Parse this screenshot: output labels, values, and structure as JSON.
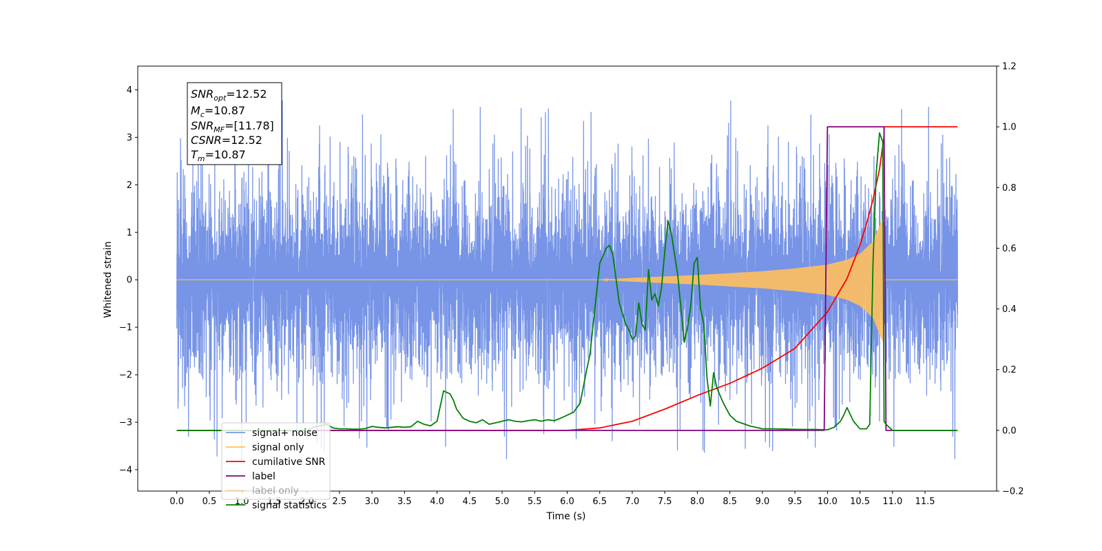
{
  "chart_data": {
    "type": "line",
    "xlabel": "Time (s)",
    "ylabel": "Whitened strain",
    "xlim": [
      -0.6,
      12.6
    ],
    "ylim": [
      -4.45,
      4.5
    ],
    "y2lim": [
      -0.2,
      1.2
    ],
    "x_ticks": [
      "0.0",
      "0.5",
      "1.0",
      "1.5",
      "2.0",
      "2.5",
      "3.0",
      "3.5",
      "4.0",
      "4.5",
      "5.0",
      "5.5",
      "6.0",
      "6.5",
      "7.0",
      "7.5",
      "8.0",
      "8.5",
      "9.0",
      "9.5",
      "10.0",
      "10.5",
      "11.0",
      "11.5"
    ],
    "y_ticks": [
      "−4",
      "−3",
      "−2",
      "−1",
      "0",
      "1",
      "2",
      "3",
      "4"
    ],
    "y2_ticks": [
      "−0.2",
      "0.0",
      "0.2",
      "0.4",
      "0.6",
      "0.8",
      "1.0",
      "1.2"
    ],
    "legend_position": "lower-left",
    "info_box": {
      "snr_opt": {
        "symbol": "SNR",
        "sub": "opt",
        "value": "=12.52"
      },
      "mc": {
        "symbol": "M",
        "sub": "c",
        "value": "=10.87"
      },
      "snr_mf": {
        "symbol": "SNR",
        "sub": "MF",
        "value": "=[11.78]"
      },
      "csnr": {
        "symbol": "CSNR",
        "value": "=12.52"
      },
      "tm": {
        "symbol": "T",
        "sub": "m",
        "value": "=10.87"
      }
    },
    "series": [
      {
        "name": "signal+ noise",
        "color": "#7794e6",
        "axis": "left",
        "description_points": {
          "t_start": 0.0,
          "t_end": 12.0,
          "typical_range": [
            -2.3,
            2.3
          ],
          "peak_max": 4.12,
          "peak_min": -3.95
        }
      },
      {
        "name": "signal only",
        "color": "#ffbf5e",
        "axis": "left",
        "envelope": {
          "t": [
            0.0,
            6.5,
            7.0,
            8.0,
            9.0,
            9.5,
            10.0,
            10.3,
            10.5,
            10.7,
            10.85,
            10.87,
            12.0
          ],
          "amp": [
            0.0,
            0.0,
            0.04,
            0.1,
            0.18,
            0.24,
            0.32,
            0.42,
            0.55,
            0.8,
            1.3,
            0.0,
            0.0
          ]
        }
      },
      {
        "name": "cumilative SNR",
        "color": "#ff0000",
        "axis": "right",
        "x": [
          0.0,
          6.0,
          6.5,
          7.0,
          7.5,
          8.0,
          8.5,
          9.0,
          9.5,
          10.0,
          10.3,
          10.5,
          10.6,
          10.7,
          10.8,
          10.87,
          10.87,
          12.0
        ],
        "y": [
          0.0,
          0.0,
          0.008,
          0.03,
          0.07,
          0.115,
          0.155,
          0.205,
          0.27,
          0.39,
          0.5,
          0.61,
          0.68,
          0.76,
          0.86,
          0.97,
          1.0,
          1.0
        ]
      },
      {
        "name": "label",
        "color": "#800080",
        "axis": "right",
        "x": [
          0.0,
          9.95,
          10.0,
          10.87,
          10.9,
          12.0
        ],
        "y": [
          0.0,
          0.0,
          1.0,
          1.0,
          0.0,
          0.0
        ]
      },
      {
        "name": "label only",
        "color": "#ffbf5e",
        "axis": "right"
      },
      {
        "name": "signal statistics",
        "color": "#008000",
        "axis": "right",
        "x": [
          0.0,
          2.0,
          2.1,
          2.2,
          2.3,
          2.4,
          2.5,
          2.6,
          2.7,
          2.8,
          2.9,
          3.0,
          3.1,
          3.2,
          3.3,
          3.4,
          3.5,
          3.6,
          3.7,
          3.8,
          3.9,
          4.0,
          4.1,
          4.2,
          4.25,
          4.3,
          4.4,
          4.5,
          4.6,
          4.7,
          4.8,
          4.9,
          5.0,
          5.1,
          5.2,
          5.3,
          5.4,
          5.5,
          5.6,
          5.7,
          5.8,
          5.9,
          6.0,
          6.1,
          6.2,
          6.3,
          6.35,
          6.4,
          6.5,
          6.6,
          6.65,
          6.7,
          6.8,
          6.9,
          6.95,
          7.0,
          7.05,
          7.1,
          7.15,
          7.2,
          7.25,
          7.3,
          7.35,
          7.4,
          7.45,
          7.5,
          7.55,
          7.6,
          7.7,
          7.8,
          7.85,
          7.9,
          7.95,
          8.0,
          8.05,
          8.1,
          8.15,
          8.2,
          8.25,
          8.3,
          8.4,
          8.5,
          8.6,
          8.8,
          9.0,
          9.2,
          9.4,
          9.6,
          9.8,
          10.0,
          10.1,
          10.2,
          10.25,
          10.3,
          10.4,
          10.5,
          10.6,
          10.65,
          10.7,
          10.75,
          10.8,
          10.85,
          10.87,
          10.9,
          11.0,
          12.0
        ],
        "y": [
          0.0,
          0.0,
          0.01,
          0.015,
          0.02,
          0.008,
          0.005,
          0.005,
          0.004,
          0.004,
          0.006,
          0.013,
          0.01,
          0.008,
          0.01,
          0.012,
          0.01,
          0.012,
          0.03,
          0.02,
          0.015,
          0.03,
          0.13,
          0.12,
          0.1,
          0.07,
          0.04,
          0.03,
          0.025,
          0.035,
          0.02,
          0.025,
          0.03,
          0.035,
          0.03,
          0.028,
          0.032,
          0.035,
          0.03,
          0.035,
          0.032,
          0.04,
          0.05,
          0.06,
          0.09,
          0.2,
          0.25,
          0.35,
          0.55,
          0.6,
          0.61,
          0.58,
          0.42,
          0.35,
          0.33,
          0.3,
          0.31,
          0.42,
          0.35,
          0.33,
          0.53,
          0.43,
          0.45,
          0.41,
          0.47,
          0.59,
          0.69,
          0.65,
          0.51,
          0.29,
          0.34,
          0.41,
          0.55,
          0.57,
          0.4,
          0.35,
          0.17,
          0.08,
          0.19,
          0.14,
          0.09,
          0.05,
          0.03,
          0.015,
          0.005,
          0.005,
          0.004,
          0.003,
          0.003,
          0.002,
          0.01,
          0.03,
          0.05,
          0.075,
          0.03,
          0.005,
          0.005,
          0.02,
          0.55,
          0.85,
          0.98,
          0.95,
          0.03,
          0.02,
          0.0,
          0.0
        ]
      }
    ]
  }
}
